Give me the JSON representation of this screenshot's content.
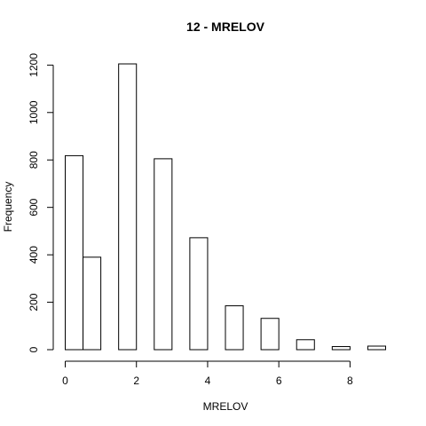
{
  "chart_data": {
    "type": "bar",
    "title": "12 - MRELOV",
    "xlabel": "MRELOV",
    "ylabel": "Frequency",
    "bins": [
      {
        "start": 0.0,
        "end": 0.5,
        "value": 818
      },
      {
        "start": 0.5,
        "end": 1.0,
        "value": 390
      },
      {
        "start": 1.0,
        "end": 1.5,
        "value": 0
      },
      {
        "start": 1.5,
        "end": 2.0,
        "value": 1205
      },
      {
        "start": 2.0,
        "end": 2.5,
        "value": 0
      },
      {
        "start": 2.5,
        "end": 3.0,
        "value": 805
      },
      {
        "start": 3.0,
        "end": 3.5,
        "value": 0
      },
      {
        "start": 3.5,
        "end": 4.0,
        "value": 472
      },
      {
        "start": 4.0,
        "end": 4.5,
        "value": 0
      },
      {
        "start": 4.5,
        "end": 5.0,
        "value": 185
      },
      {
        "start": 5.0,
        "end": 5.5,
        "value": 0
      },
      {
        "start": 5.5,
        "end": 6.0,
        "value": 132
      },
      {
        "start": 6.0,
        "end": 6.5,
        "value": 0
      },
      {
        "start": 6.5,
        "end": 7.0,
        "value": 42
      },
      {
        "start": 7.0,
        "end": 7.5,
        "value": 0
      },
      {
        "start": 7.5,
        "end": 8.0,
        "value": 13
      },
      {
        "start": 8.0,
        "end": 8.5,
        "value": 0
      },
      {
        "start": 8.5,
        "end": 9.0,
        "value": 15
      }
    ],
    "xlim": [
      0,
      9
    ],
    "ylim": [
      0,
      1205
    ],
    "xticks": [
      "0",
      "2",
      "4",
      "6",
      "8"
    ],
    "yticks": [
      "0",
      "200",
      "400",
      "600",
      "800",
      "1000",
      "1200"
    ],
    "grid": false
  }
}
